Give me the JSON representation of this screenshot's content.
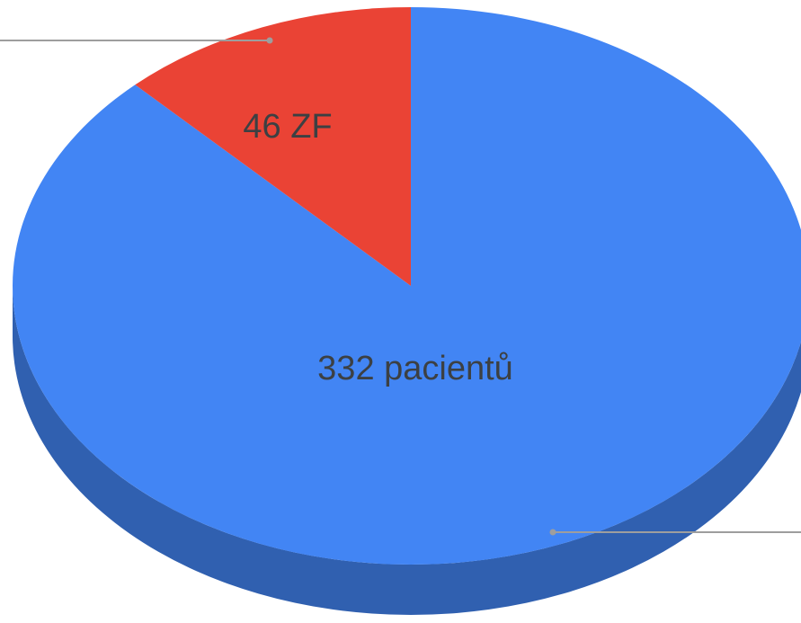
{
  "chart_data": {
    "type": "pie",
    "series": [
      {
        "values": [
          332,
          46
        ],
        "value_labels": [
          "332 pacientů",
          "46 ZF"
        ],
        "colors": [
          "#4285f4",
          "#ea4335"
        ]
      }
    ],
    "three_d": true
  }
}
